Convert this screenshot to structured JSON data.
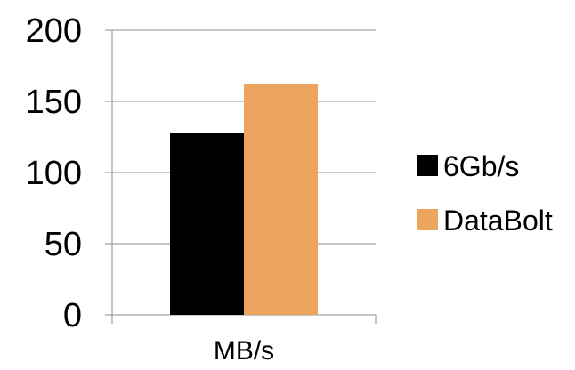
{
  "chart_data": {
    "type": "bar",
    "categories": [
      "MB/s"
    ],
    "series": [
      {
        "name": "6Gb/s",
        "values": [
          128
        ],
        "color": "#000000"
      },
      {
        "name": "DataBolt",
        "values": [
          162
        ],
        "color": "#EBA55E"
      }
    ],
    "ylim": [
      0,
      200
    ],
    "yticks": [
      0,
      50,
      100,
      150,
      200
    ],
    "grid": true,
    "legend_position": "right"
  }
}
